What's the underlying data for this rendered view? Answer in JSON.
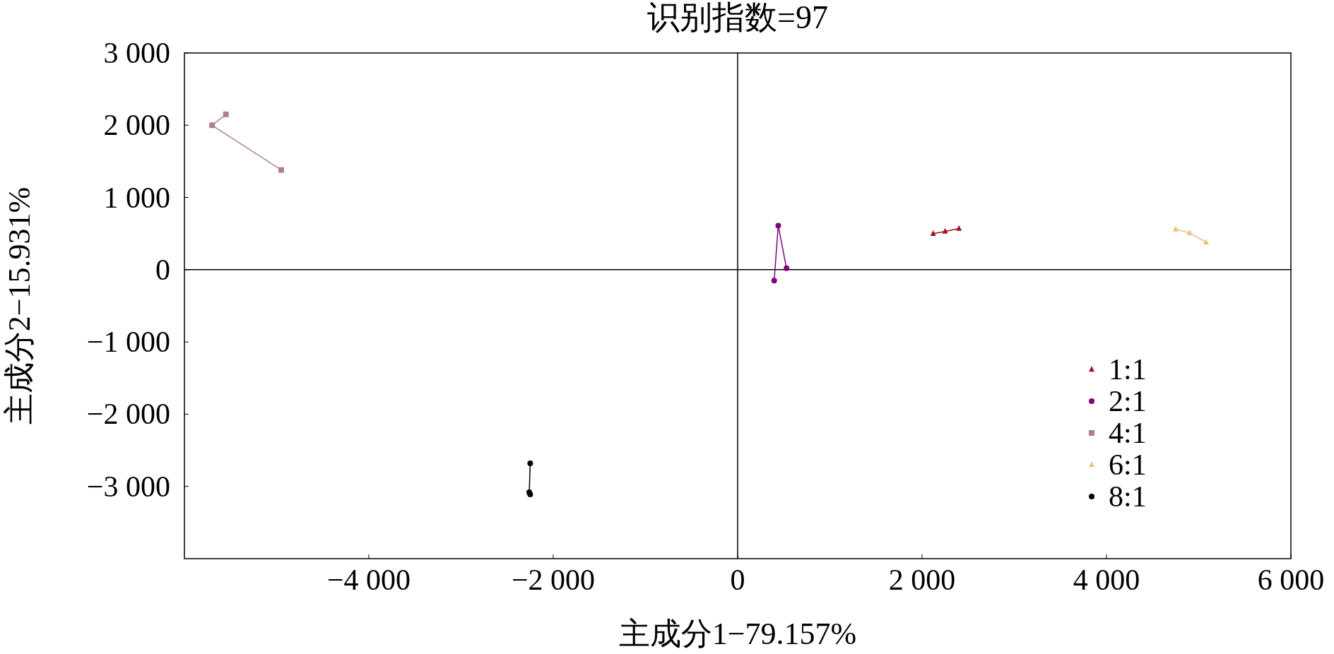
{
  "chart_data": {
    "type": "line",
    "title": "识别指数=97",
    "xlabel": "主成分1−79.157%",
    "ylabel": "主成分2−15.931%",
    "xlim": [
      -6000,
      6000
    ],
    "ylim": [
      -4000,
      3000
    ],
    "xticks": [
      {
        "value": -4000,
        "label": "−4 000"
      },
      {
        "value": -2000,
        "label": "−2 000"
      },
      {
        "value": 0,
        "label": "0"
      },
      {
        "value": 2000,
        "label": "2 000"
      },
      {
        "value": 4000,
        "label": "4 000"
      },
      {
        "value": 6000,
        "label": "6 000"
      }
    ],
    "yticks": [
      {
        "value": -3000,
        "label": "−3 000"
      },
      {
        "value": -2000,
        "label": "−2 000"
      },
      {
        "value": -1000,
        "label": "−1 000"
      },
      {
        "value": 0,
        "label": "0"
      },
      {
        "value": 1000,
        "label": "1 000"
      },
      {
        "value": 2000,
        "label": "2 000"
      },
      {
        "value": 3000,
        "label": "3 000"
      }
    ],
    "legend": "bottom right",
    "series": [
      {
        "name": "1:1",
        "color": "#a01020",
        "marker": "triangle",
        "x": [
          2120,
          2250,
          2400
        ],
        "values": [
          500,
          530,
          570
        ]
      },
      {
        "name": "2:1",
        "color": "#800080",
        "marker": "circle",
        "x": [
          396,
          440,
          530
        ],
        "values": [
          -150,
          610,
          20
        ]
      },
      {
        "name": "4:1",
        "color": "#b08090",
        "marker": "square",
        "x": [
          -5550,
          -5700,
          -4950
        ],
        "values": [
          2150,
          2000,
          1380
        ]
      },
      {
        "name": "6:1",
        "color": "#e8c080",
        "marker": "triangle",
        "x": [
          4750,
          4900,
          5080
        ],
        "values": [
          560,
          510,
          380
        ]
      },
      {
        "name": "8:1",
        "color": "#000000",
        "marker": "circle",
        "x": [
          -2250,
          -2260,
          -2250
        ],
        "values": [
          -2680,
          -3080,
          -3110
        ]
      }
    ]
  }
}
